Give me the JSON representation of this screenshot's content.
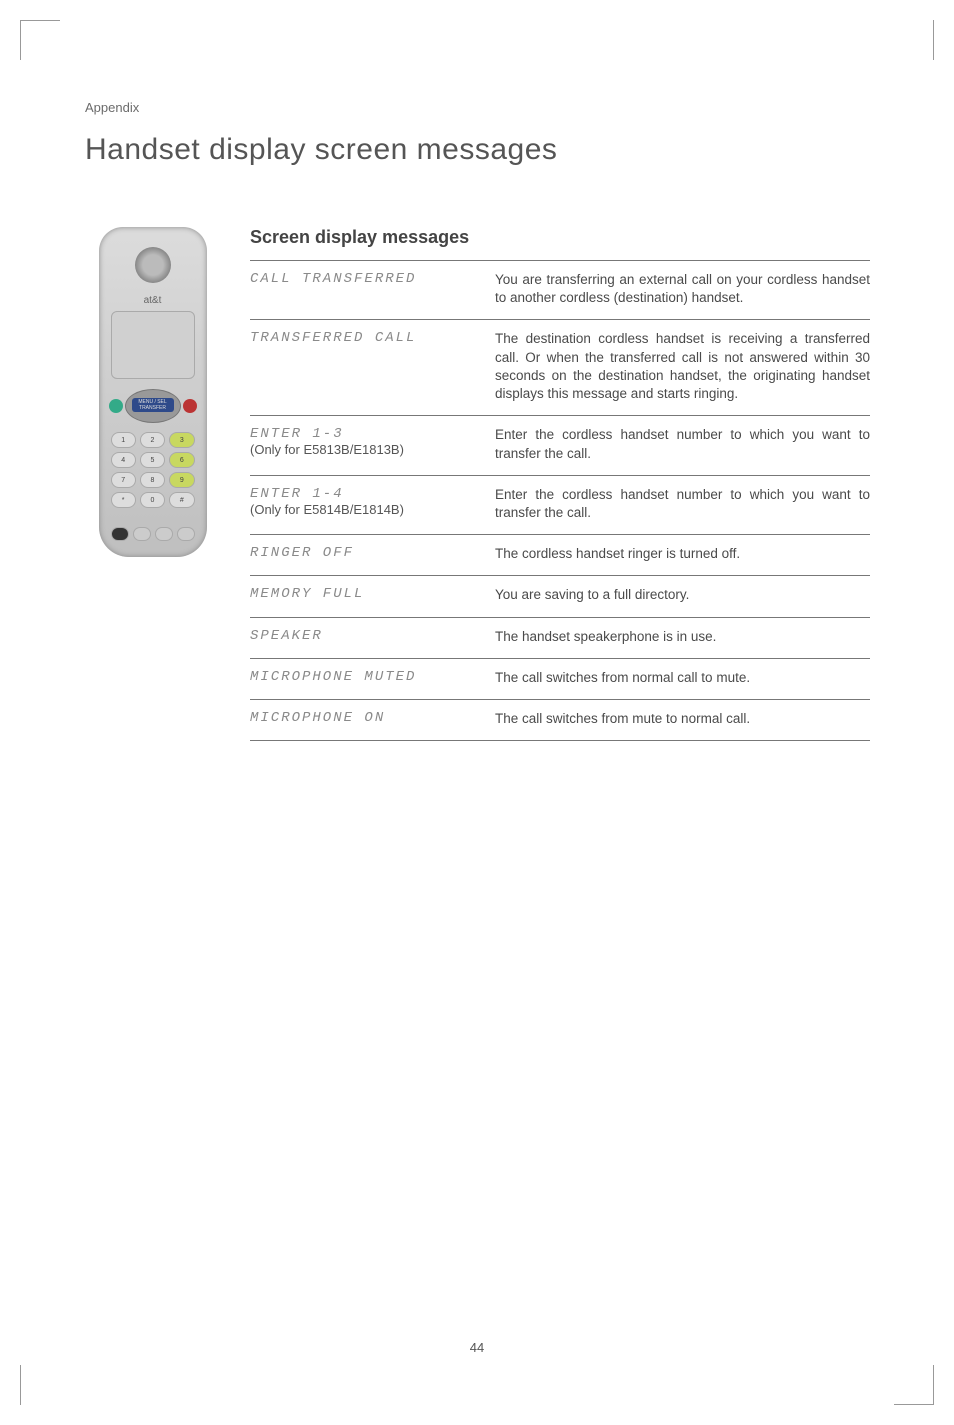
{
  "appendix_label": "Appendix",
  "page_title": "Handset display screen messages",
  "subheading": "Screen display messages",
  "page_number": "44",
  "phone": {
    "brand": "at&t",
    "nav_label": "MENU / SEL\nTRANSFER",
    "keys": [
      "1",
      "2",
      "3",
      "4",
      "5",
      "6",
      "7",
      "8",
      "9",
      "*",
      "0",
      "#"
    ]
  },
  "rows": [
    {
      "lcd": "CALL TRANSFERRED",
      "sub": "",
      "desc": "You are transferring an external call on your cordless handset to another cordless (destination) handset."
    },
    {
      "lcd": "TRANSFERRED CALL",
      "sub": "",
      "desc": "The destination cordless handset is receiving a transferred call. Or when the transferred call is not answered within 30 seconds on the destination handset, the originating handset displays this message and starts ringing."
    },
    {
      "lcd": "ENTER 1-3",
      "sub": "(Only for E5813B/E1813B)",
      "desc": "Enter the cordless handset number to which you want to transfer the call."
    },
    {
      "lcd": "ENTER 1-4",
      "sub": "(Only for E5814B/E1814B)",
      "desc": "Enter the cordless handset number to which you want to transfer the call."
    },
    {
      "lcd": "RINGER OFF",
      "sub": "",
      "desc": "The cordless handset ringer is turned off."
    },
    {
      "lcd": "MEMORY FULL",
      "sub": "",
      "desc": "You are saving to a full directory."
    },
    {
      "lcd": "SPEAKER",
      "sub": "",
      "desc": "The handset speakerphone is in use."
    },
    {
      "lcd": "MICROPHONE MUTED",
      "sub": "",
      "desc": "The call switches from normal call to mute."
    },
    {
      "lcd": "MICROPHONE ON",
      "sub": "",
      "desc": "The call switches from mute to normal call."
    }
  ]
}
